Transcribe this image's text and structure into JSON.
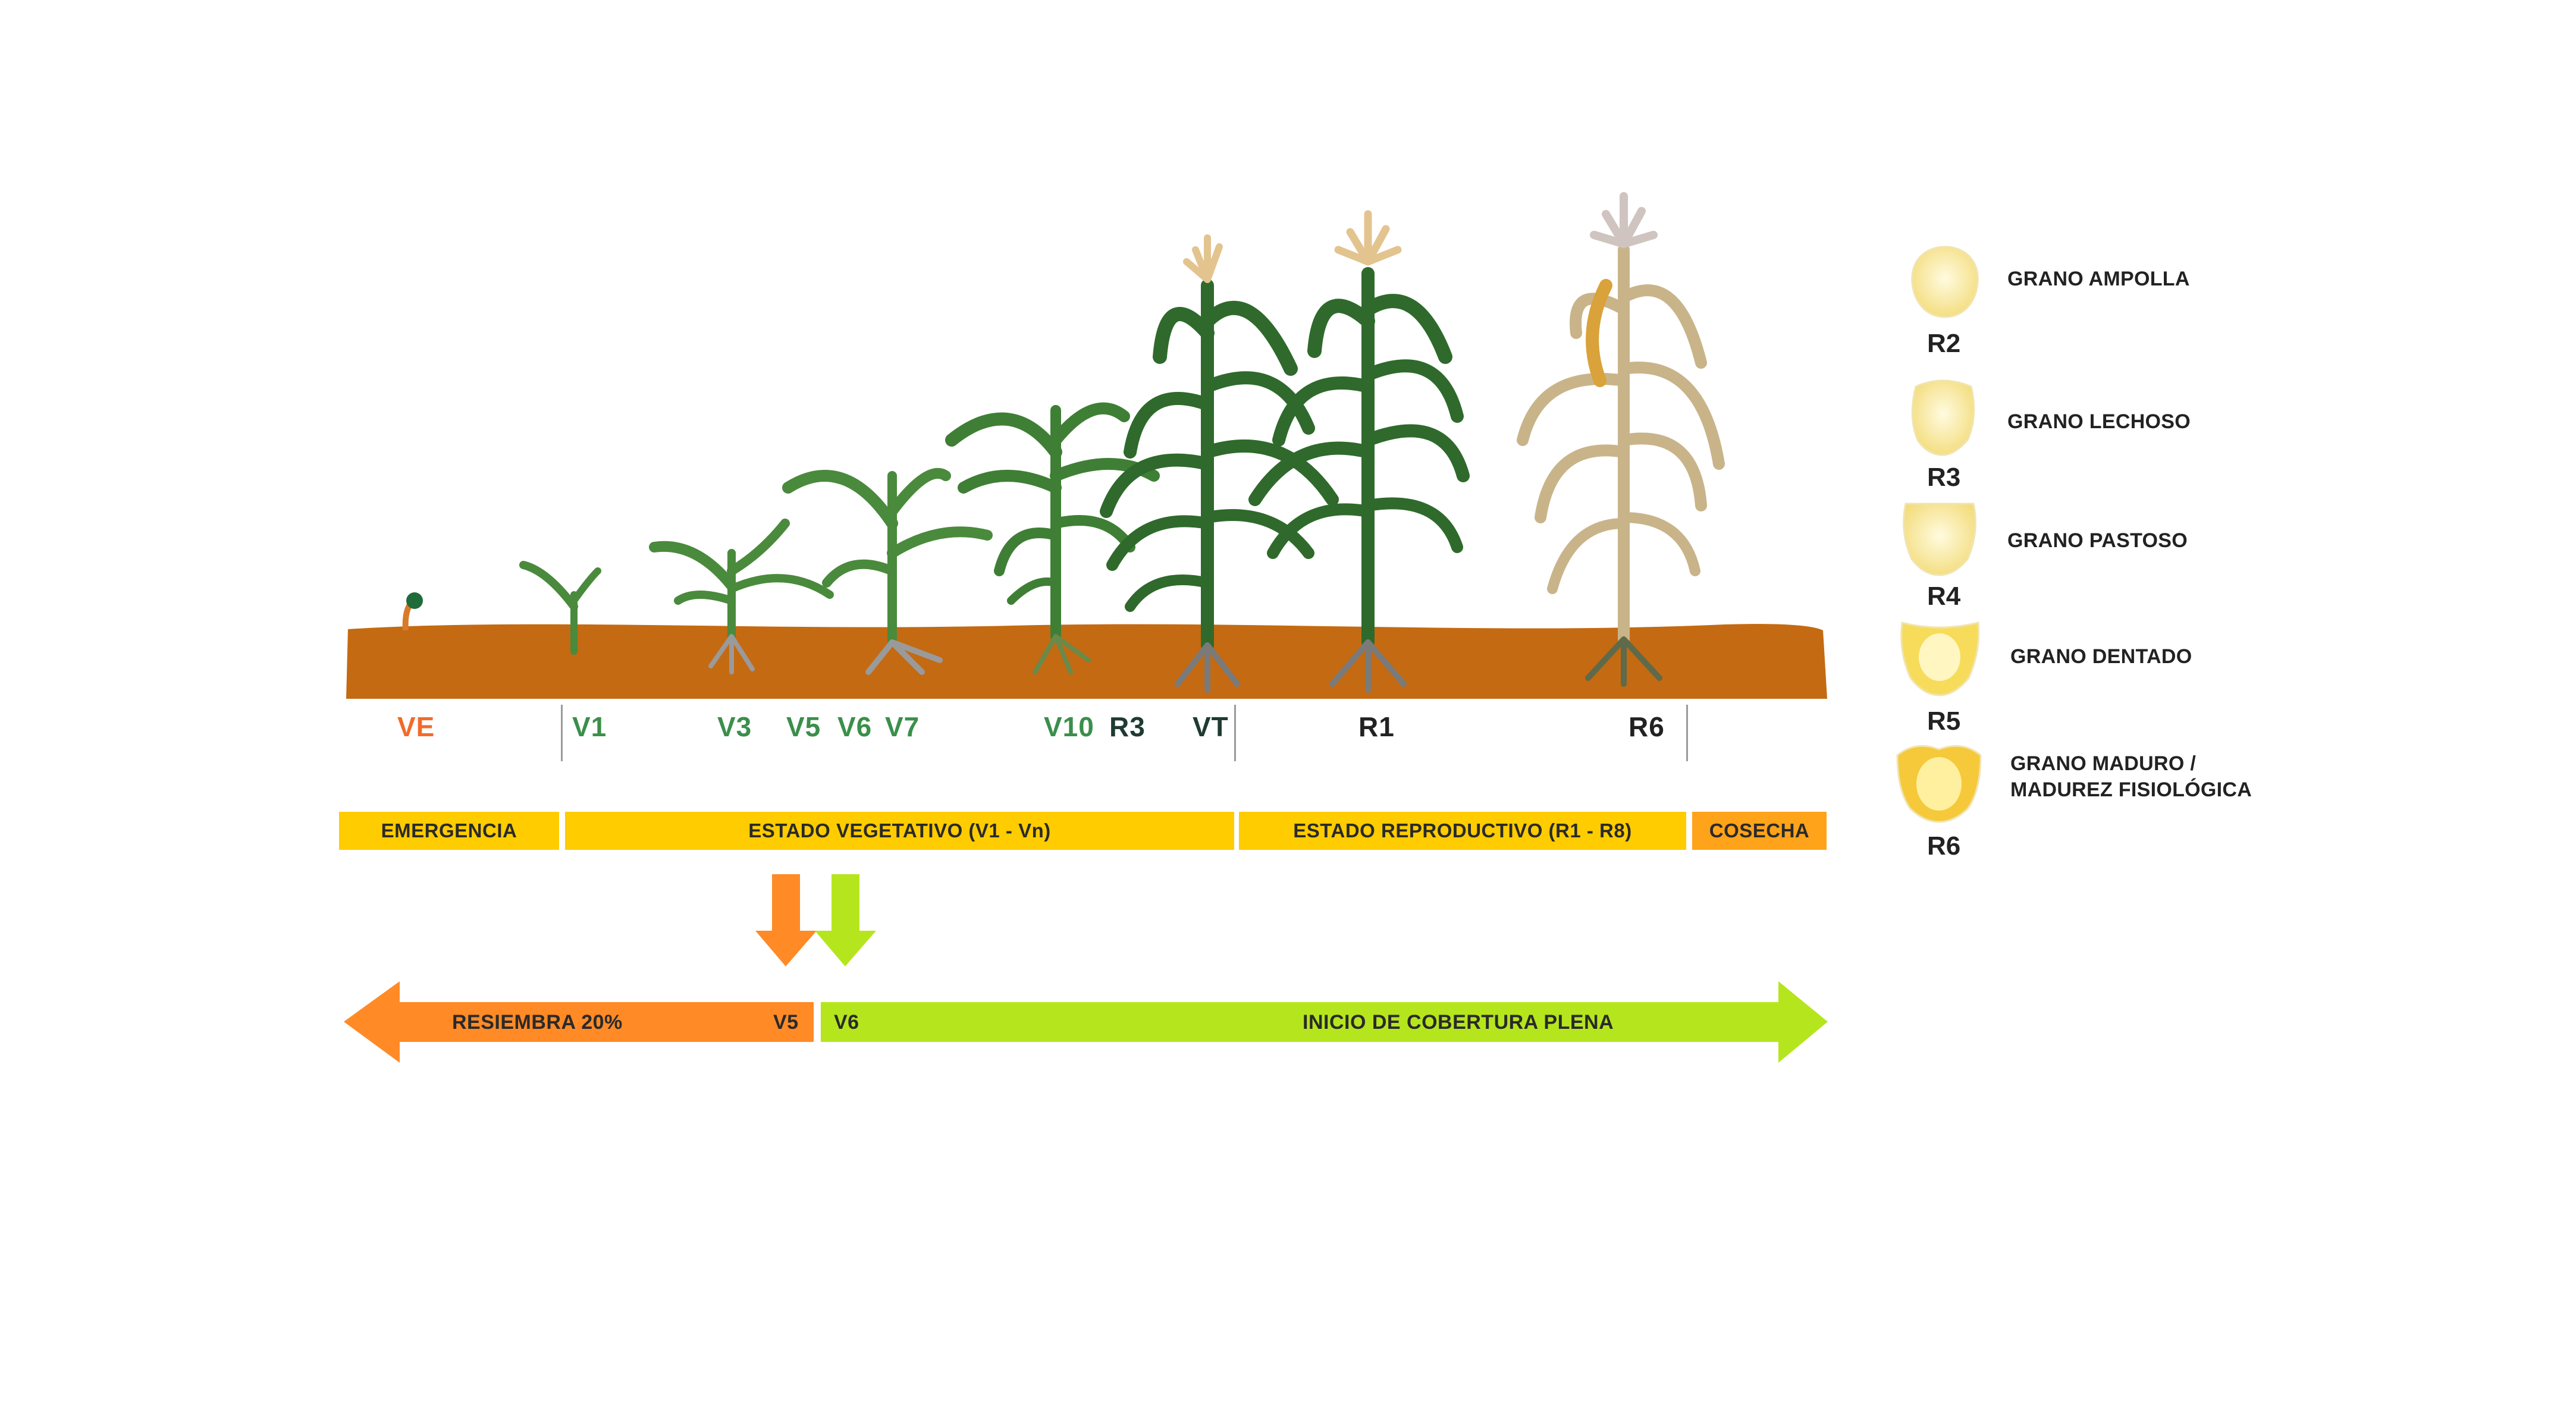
{
  "stages": [
    {
      "code": "VE",
      "color": "#f26b2a"
    },
    {
      "code": "V1",
      "color": "#3a8f4a"
    },
    {
      "code": "V3",
      "color": "#3a8f4a"
    },
    {
      "code": "V5",
      "color": "#3a8f4a"
    },
    {
      "code": "V6",
      "color": "#3a8f4a"
    },
    {
      "code": "V7",
      "color": "#3a8f4a"
    },
    {
      "code": "V10",
      "color": "#3a8f4a"
    },
    {
      "code": "R3",
      "color": "#1f3b33"
    },
    {
      "code": "VT",
      "color": "#1f3b33"
    },
    {
      "code": "R1",
      "color": "#222222"
    },
    {
      "code": "R6",
      "color": "#222222"
    }
  ],
  "phases": [
    {
      "label": "EMERGENCIA",
      "color": "#ffcc00"
    },
    {
      "label": "ESTADO VEGETATIVO (V1 - Vn)",
      "color": "#ffcc00"
    },
    {
      "label": "ESTADO REPRODUCTIVO (R1 - R8)",
      "color": "#ffcc00"
    },
    {
      "label": "COSECHA",
      "color": "#ffa31a"
    }
  ],
  "arrows": {
    "left": {
      "label": "RESIEMBRA 20%",
      "end_stage": "V5",
      "color": "#ff8a26"
    },
    "right": {
      "start_stage": "V6",
      "label": "INICIO DE COBERTURA PLENA",
      "color": "#b5e61d"
    }
  },
  "legend": [
    {
      "code": "R2",
      "label": "GRANO AMPOLLA"
    },
    {
      "code": "R3",
      "label": "GRANO LECHOSO"
    },
    {
      "code": "R4",
      "label": "GRANO PASTOSO"
    },
    {
      "code": "R5",
      "label": "GRANO DENTADO"
    },
    {
      "code": "R6",
      "label_line1": "GRANO MADURO /",
      "label_line2": "MADUREZ FISIOLÓGICA"
    }
  ],
  "colors": {
    "soil": "#c46a12",
    "leaf_green": "#3f7f35",
    "leaf_dark": "#2f6a2c",
    "dry_plant": "#c9b48a",
    "tassel": "#e3c48f",
    "roots": "#8a8a8a"
  }
}
